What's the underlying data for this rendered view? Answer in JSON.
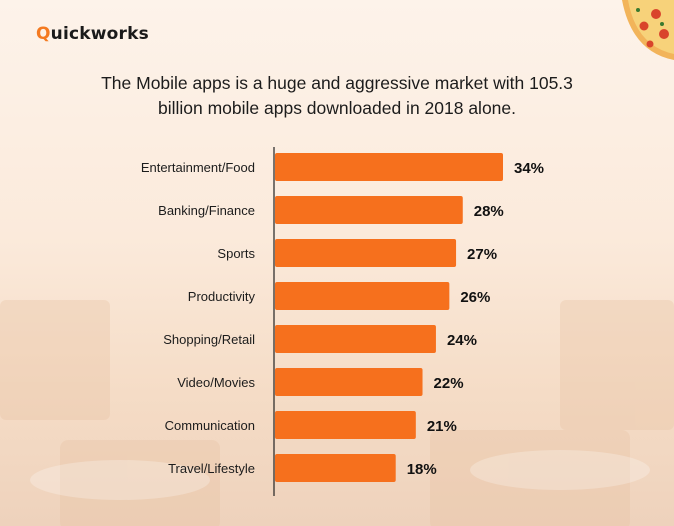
{
  "brand": {
    "name_initial": "Q",
    "name_rest": "uickworks",
    "accent": "#f47a20"
  },
  "title_lines": [
    "The Mobile apps is a huge and aggressive market with 105.3",
    "billion mobile apps downloaded in 2018 alone."
  ],
  "decor": {
    "pizza_icon": "pizza-slice-icon"
  },
  "chart_data": {
    "type": "bar",
    "orientation": "horizontal",
    "categories": [
      "Entertainment/Food",
      "Banking/Finance",
      "Sports",
      "Productivity",
      "Shopping/Retail",
      "Video/Movies",
      "Communication",
      "Travel/Lifestyle"
    ],
    "values": [
      34,
      28,
      27,
      26,
      24,
      22,
      21,
      18
    ],
    "value_labels": [
      "34%",
      "28%",
      "27%",
      "26%",
      "24%",
      "22%",
      "21%",
      "18%"
    ],
    "title": "",
    "xlabel": "",
    "ylabel": "",
    "xlim": [
      0,
      34
    ],
    "bar_color": "#f6701d",
    "grid": false,
    "legend": "none"
  }
}
